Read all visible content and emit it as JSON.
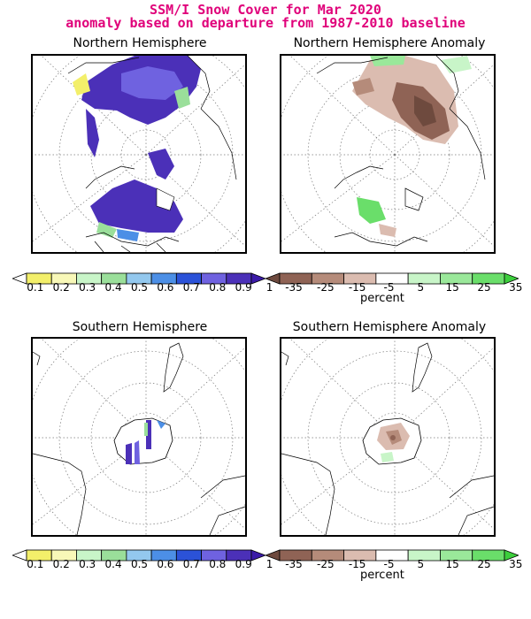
{
  "title_line1": "SSM/I Snow Cover for Mar 2020",
  "title_line2": "anomaly based on departure from 1987-2010 baseline",
  "panels": {
    "nh": "Northern Hemisphere",
    "nh_anom": "Northern Hemisphere Anomaly",
    "sh": "Southern Hemisphere",
    "sh_anom": "Southern Hemisphere Anomaly"
  },
  "cover_scale": {
    "labels": [
      "0.1",
      "0.2",
      "0.3",
      "0.4",
      "0.5",
      "0.6",
      "0.7",
      "0.8",
      "0.9",
      "1"
    ],
    "colors": [
      "#ffffff",
      "#f3ef6a",
      "#f8f8b8",
      "#c8f5c8",
      "#9adf9a",
      "#93c8ee",
      "#4c8fe6",
      "#2b52d8",
      "#6f62e0",
      "#4b30b8",
      "#3b1aa8"
    ]
  },
  "anomaly_scale": {
    "labels": [
      "-35",
      "-25",
      "-15",
      "-5",
      "5",
      "15",
      "25",
      "35"
    ],
    "unit": "percent",
    "colors": [
      "#6e4a3e",
      "#8f6355",
      "#b58b7a",
      "#dbbcb0",
      "#ffffff",
      "#c8f5c8",
      "#9ae89a",
      "#6ade6a",
      "#3ccf3c"
    ]
  }
}
